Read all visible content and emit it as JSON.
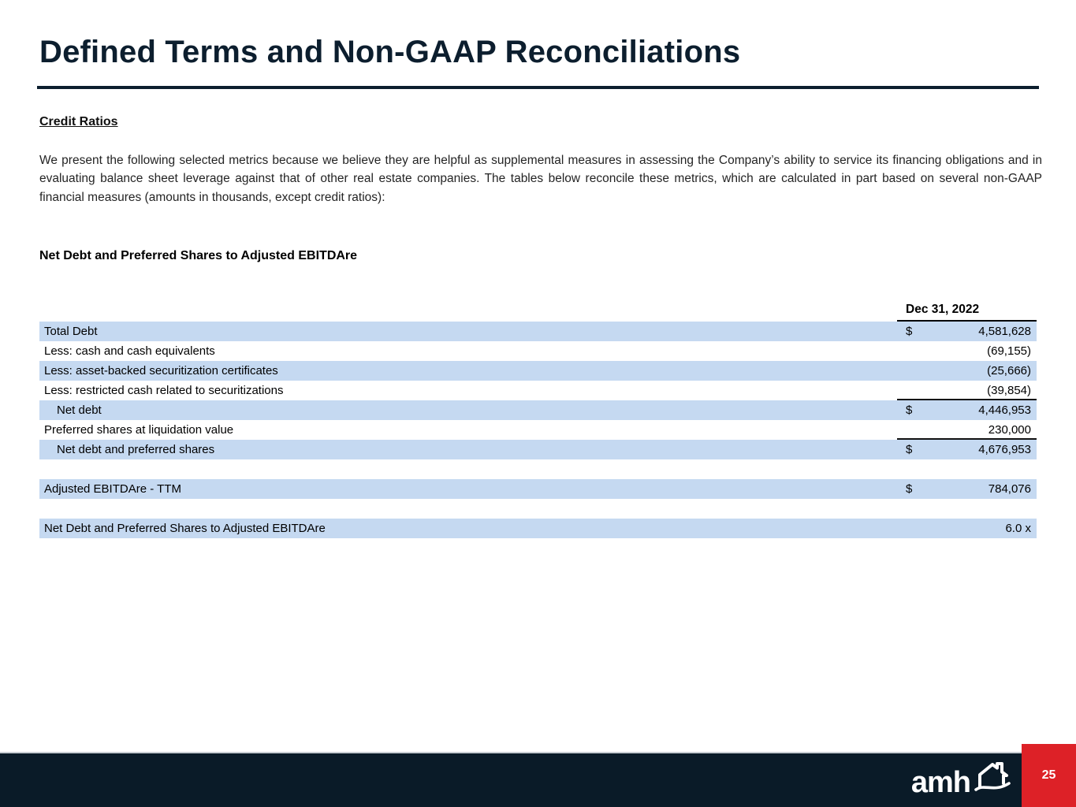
{
  "header": {
    "title": "Defined Terms and Non-GAAP Reconciliations"
  },
  "section": {
    "heading": "Credit Ratios",
    "paragraph": "We present the following selected metrics because we believe they are helpful as supplemental measures in assessing the Company’s ability to service its financing obligations and in evaluating balance sheet leverage against that of other real estate companies. The tables below reconcile these metrics, which are calculated in part based on several non-GAAP financial measures (amounts in thousands, except credit ratios):",
    "table_title": "Net Debt and Preferred Shares to Adjusted EBITDAre"
  },
  "table": {
    "column_header": "Dec 31, 2022",
    "rows": [
      {
        "label": "Total Debt",
        "currency": "$",
        "value": "4,581,628",
        "shaded": true,
        "indent": false,
        "rule_below": false,
        "spacer": false
      },
      {
        "label": "Less: cash and cash equivalents",
        "currency": "",
        "value": "(69,155)",
        "shaded": false,
        "indent": false,
        "rule_below": false,
        "spacer": false
      },
      {
        "label": "Less: asset-backed securitization certificates",
        "currency": "",
        "value": "(25,666)",
        "shaded": true,
        "indent": false,
        "rule_below": false,
        "spacer": false
      },
      {
        "label": "Less: restricted cash related to securitizations",
        "currency": "",
        "value": "(39,854)",
        "shaded": false,
        "indent": false,
        "rule_below": true,
        "spacer": false
      },
      {
        "label": "Net debt",
        "currency": "$",
        "value": "4,446,953",
        "shaded": true,
        "indent": true,
        "rule_below": false,
        "spacer": false
      },
      {
        "label": "Preferred shares at liquidation value",
        "currency": "",
        "value": "230,000",
        "shaded": false,
        "indent": false,
        "rule_below": true,
        "spacer": false
      },
      {
        "label": "Net debt and preferred shares",
        "currency": "$",
        "value": "4,676,953",
        "shaded": true,
        "indent": true,
        "rule_below": false,
        "spacer": false
      },
      {
        "label": "",
        "currency": "",
        "value": "",
        "shaded": false,
        "indent": false,
        "rule_below": false,
        "spacer": true
      },
      {
        "label": "Adjusted EBITDAre - TTM",
        "currency": "$",
        "value": "784,076",
        "shaded": true,
        "indent": false,
        "rule_below": false,
        "spacer": false
      },
      {
        "label": "",
        "currency": "",
        "value": "",
        "shaded": false,
        "indent": false,
        "rule_below": false,
        "spacer": true
      },
      {
        "label": "Net Debt and Preferred Shares to Adjusted EBITDAre",
        "currency": "",
        "value": "6.0 x",
        "shaded": true,
        "indent": false,
        "rule_below": false,
        "spacer": false
      }
    ]
  },
  "footer": {
    "logo_text": "amh",
    "page_number": "25"
  },
  "colors": {
    "accent_navy": "#0c1e2e",
    "row_shade": "#c5d9f1",
    "footer_navy": "#0a1b28",
    "page_number_red": "#dd2127"
  }
}
